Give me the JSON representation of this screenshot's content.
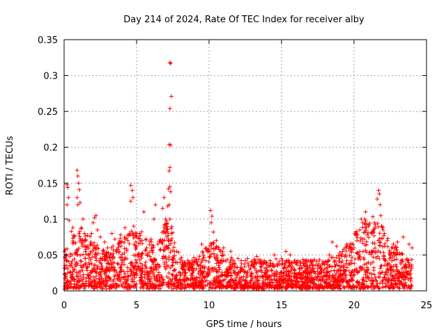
{
  "chart_data": {
    "type": "scatter",
    "title": "Day 214 of 2024, Rate Of TEC Index for receiver alby",
    "xlabel": "GPS time / hours",
    "ylabel": "ROTI / TECUs",
    "xlim": [
      0,
      25
    ],
    "ylim": [
      0,
      0.35
    ],
    "x_ticks": [
      0,
      5,
      10,
      15,
      20,
      25
    ],
    "x_tick_labels": [
      "0",
      "5",
      "10",
      "15",
      "20",
      "25"
    ],
    "y_ticks": [
      0,
      0.05,
      0.1,
      0.15,
      0.2,
      0.25,
      0.3,
      0.35
    ],
    "y_tick_labels": [
      "0",
      "0.05",
      "0.1",
      "0.15",
      "0.2",
      "0.25",
      "0.3",
      "0.35"
    ],
    "grid": true,
    "marker": "+",
    "color": "#ff0000",
    "series": [
      {
        "name": "ROTI",
        "x": [
          7.3,
          7.35,
          7.4,
          7.3,
          7.25,
          7.35,
          7.3,
          7.25,
          7.3,
          7.35,
          7.2,
          7.15,
          7.1,
          7.3,
          7.25,
          7.2,
          7.4,
          7.1,
          0.9,
          0.95,
          1.0,
          1.05,
          0.9,
          0.95,
          1.1,
          0.2,
          0.25,
          0.3,
          0.2,
          0.35,
          0.5,
          0.6,
          1.3,
          1.4,
          1.2,
          1.5,
          1.6,
          1.7,
          1.8,
          1.9,
          2.0,
          2.1,
          2.2,
          2.3,
          2.5,
          2.8,
          4.6,
          4.7,
          4.75,
          4.6,
          4.8,
          5.2,
          5.5,
          6.2,
          6.3,
          6.8,
          6.9,
          7.0,
          7.05,
          5.0,
          4.2,
          3.9,
          4.4,
          5.7,
          6.0,
          3.3,
          3.5,
          3.0,
          10.1,
          10.2,
          10.15,
          10.3,
          10.5,
          9.8,
          9.5,
          11.0,
          11.5,
          12.0,
          12.5,
          13.0,
          13.3,
          13.8,
          14.5,
          15.0,
          15.3,
          15.6,
          16.0,
          16.5,
          17.0,
          17.5,
          18.0,
          18.3,
          18.5,
          18.8,
          19.0,
          19.5,
          19.8,
          20.0,
          20.2,
          20.4,
          20.6,
          20.5,
          20.8,
          21.0,
          21.2,
          21.4,
          21.6,
          21.7,
          21.75,
          21.8,
          21.85,
          21.9,
          22.0,
          22.1,
          22.3,
          22.6,
          23.0,
          23.4,
          23.8,
          24.0
        ],
        "y": [
          0.318,
          0.317,
          0.271,
          0.254,
          0.204,
          0.203,
          0.172,
          0.167,
          0.145,
          0.138,
          0.142,
          0.118,
          0.09,
          0.1,
          0.12,
          0.07,
          0.08,
          0.06,
          0.168,
          0.16,
          0.15,
          0.141,
          0.13,
          0.12,
          0.123,
          0.148,
          0.144,
          0.13,
          0.12,
          0.098,
          0.083,
          0.088,
          0.1,
          0.08,
          0.088,
          0.07,
          0.062,
          0.05,
          0.065,
          0.08,
          0.095,
          0.102,
          0.105,
          0.085,
          0.075,
          0.068,
          0.147,
          0.14,
          0.13,
          0.125,
          0.09,
          0.08,
          0.11,
          0.1,
          0.12,
          0.115,
          0.13,
          0.1,
          0.085,
          0.075,
          0.088,
          0.078,
          0.07,
          0.06,
          0.072,
          0.08,
          0.072,
          0.06,
          0.112,
          0.104,
          0.095,
          0.082,
          0.07,
          0.06,
          0.065,
          0.06,
          0.055,
          0.045,
          0.042,
          0.04,
          0.048,
          0.042,
          0.05,
          0.045,
          0.055,
          0.05,
          0.04,
          0.038,
          0.042,
          0.035,
          0.04,
          0.05,
          0.068,
          0.062,
          0.045,
          0.065,
          0.06,
          0.06,
          0.07,
          0.085,
          0.095,
          0.1,
          0.11,
          0.09,
          0.08,
          0.095,
          0.128,
          0.14,
          0.135,
          0.12,
          0.105,
          0.09,
          0.085,
          0.08,
          0.07,
          0.06,
          0.068,
          0.075,
          0.065,
          0.06
        ]
      }
    ]
  }
}
